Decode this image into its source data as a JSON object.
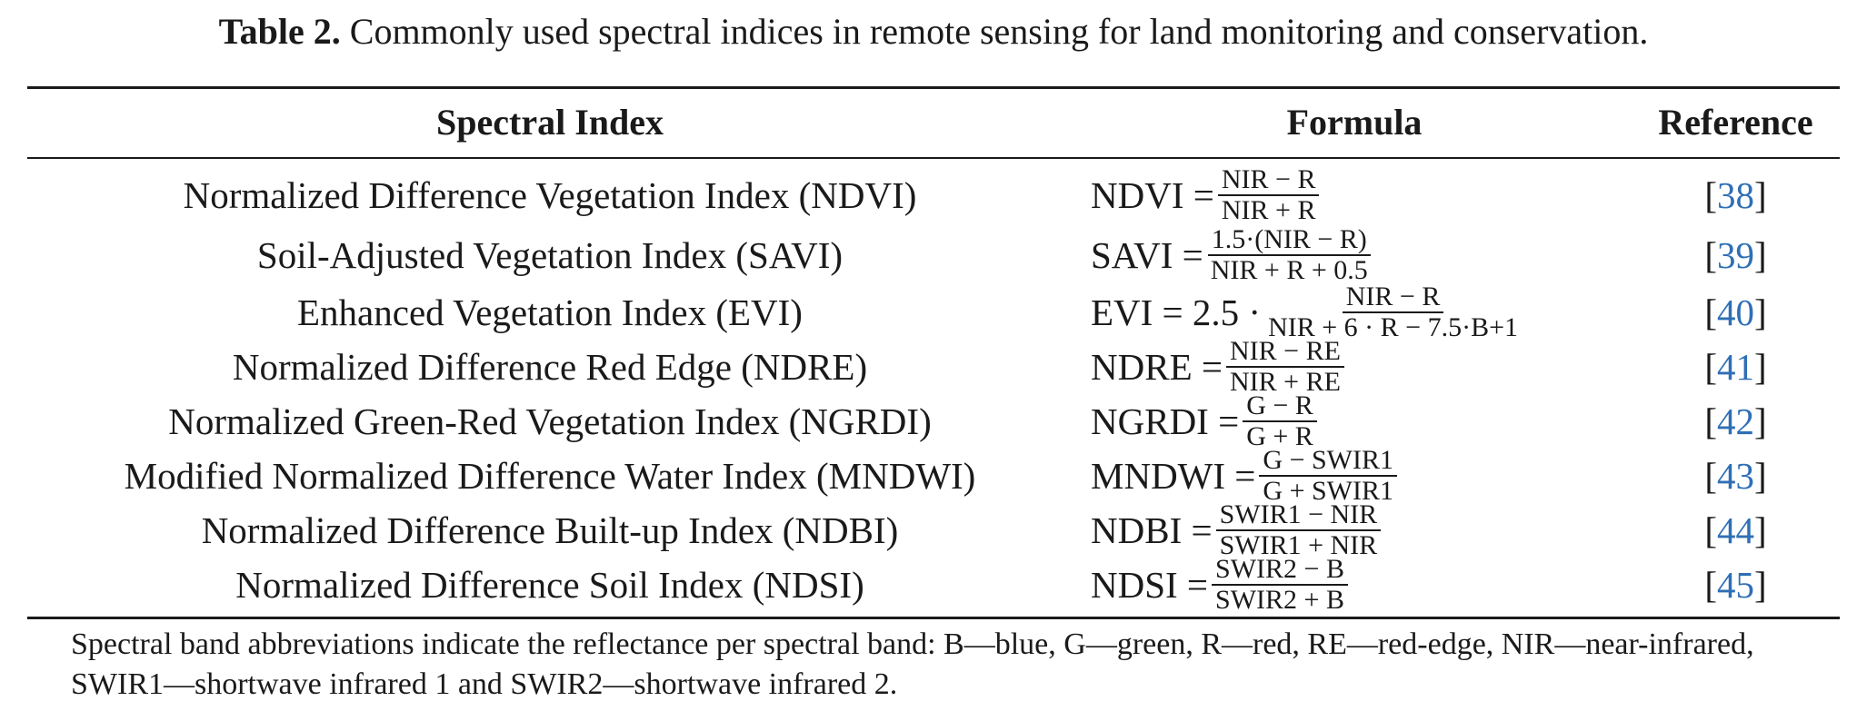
{
  "caption": {
    "label": "Table 2.",
    "text": " Commonly used spectral indices in remote sensing for land monitoring and conservation."
  },
  "columns": {
    "index": "Spectral Index",
    "formula": "Formula",
    "reference": "Reference"
  },
  "rows": [
    {
      "name": "Normalized Difference Vegetation Index (NDVI)",
      "lhs": "NDVI =",
      "num": "NIR − R",
      "den": "NIR + R",
      "ref": "38"
    },
    {
      "name": "Soil-Adjusted Vegetation Index (SAVI)",
      "lhs": "SAVI =",
      "num": "1.5·(NIR − R)",
      "den": "NIR + R + 0.5",
      "ref": "39"
    },
    {
      "name": "Enhanced Vegetation Index (EVI)",
      "lhs": "EVI = 2.5 ·",
      "num": "NIR − R",
      "den": "NIR + 6 · R − 7.5·B+1",
      "ref": "40"
    },
    {
      "name": "Normalized Difference Red Edge (NDRE)",
      "lhs": "NDRE =",
      "num": "NIR − RE",
      "den": "NIR + RE",
      "ref": "41"
    },
    {
      "name": "Normalized Green-Red Vegetation Index (NGRDI)",
      "lhs": "NGRDI =",
      "num": "G − R",
      "den": "G + R",
      "ref": "42"
    },
    {
      "name": "Modified Normalized Difference Water Index (MNDWI)",
      "lhs": "MNDWI =",
      "num": "G − SWIR1",
      "den": "G + SWIR1",
      "ref": "43"
    },
    {
      "name": "Normalized Difference Built-up Index (NDBI)",
      "lhs": "NDBI =",
      "num": "SWIR1 − NIR",
      "den": "SWIR1 + NIR",
      "ref": "44"
    },
    {
      "name": "Normalized Difference Soil Index (NDSI)",
      "lhs": "NDSI =",
      "num": "SWIR2 − B",
      "den": "SWIR2 + B",
      "ref": "45"
    }
  ],
  "note": "Spectral band abbreviations indicate the reflectance per spectral band: B—blue, G—green, R—red, RE—red-edge, NIR—near-infrared, SWIR1—shortwave infrared 1 and SWIR2—shortwave infrared 2.",
  "colors": {
    "reference_link": "#2f6fb5",
    "text": "#1a1a1a"
  }
}
